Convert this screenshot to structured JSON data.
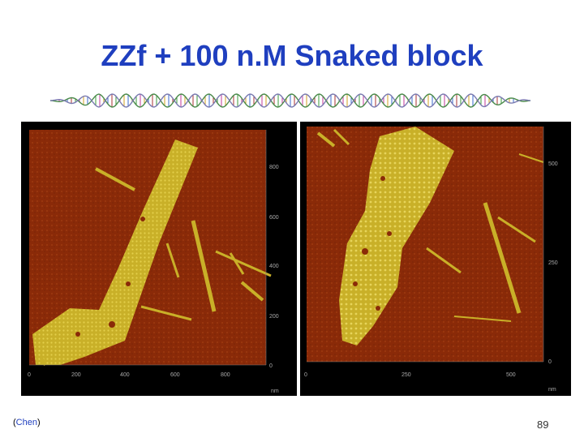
{
  "slide": {
    "title": "ZZf + 100 n.M Snaked block",
    "credit": "Chen",
    "page_number": "89"
  },
  "left_image": {
    "y_ticks": [
      "800",
      "600",
      "400",
      "200",
      "0"
    ],
    "x_ticks": [
      "0",
      "200",
      "400",
      "600",
      "800"
    ],
    "unit": "nm"
  },
  "right_image": {
    "y_ticks": [
      "500",
      "250",
      "0"
    ],
    "x_ticks": [
      "0",
      "250",
      "500"
    ],
    "unit": "nm"
  },
  "colors": {
    "title": "#1f3fbf",
    "afm_background": "#8a2a08",
    "afm_feature": "#c9b028"
  }
}
